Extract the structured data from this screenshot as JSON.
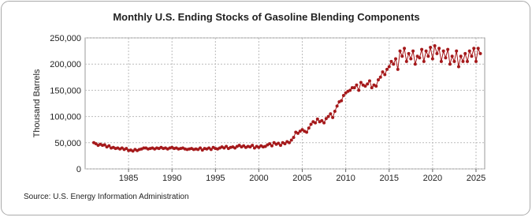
{
  "chart_data": {
    "type": "line",
    "title": "Monthly U.S. Ending Stocks of Gasoline Blending Components",
    "y_label": "Thousand Barrels",
    "source": "Source: U.S. Energy Information Administration",
    "x": [
      1981,
      1981.25,
      1981.5,
      1981.75,
      1982,
      1982.25,
      1982.5,
      1982.75,
      1983,
      1983.25,
      1983.5,
      1983.75,
      1984,
      1984.25,
      1984.5,
      1984.75,
      1985,
      1985.25,
      1985.5,
      1985.75,
      1986,
      1986.25,
      1986.5,
      1986.75,
      1987,
      1987.25,
      1987.5,
      1987.75,
      1988,
      1988.25,
      1988.5,
      1988.75,
      1989,
      1989.25,
      1989.5,
      1989.75,
      1990,
      1990.25,
      1990.5,
      1990.75,
      1991,
      1991.25,
      1991.5,
      1991.75,
      1992,
      1992.25,
      1992.5,
      1992.75,
      1993,
      1993.25,
      1993.5,
      1993.75,
      1994,
      1994.25,
      1994.5,
      1994.75,
      1995,
      1995.25,
      1995.5,
      1995.75,
      1996,
      1996.25,
      1996.5,
      1996.75,
      1997,
      1997.25,
      1997.5,
      1997.75,
      1998,
      1998.25,
      1998.5,
      1998.75,
      1999,
      1999.25,
      1999.5,
      1999.75,
      2000,
      2000.25,
      2000.5,
      2000.75,
      2001,
      2001.25,
      2001.5,
      2001.75,
      2002,
      2002.25,
      2002.5,
      2002.75,
      2003,
      2003.25,
      2003.5,
      2003.75,
      2004,
      2004.25,
      2004.5,
      2004.75,
      2005,
      2005.25,
      2005.5,
      2005.75,
      2006,
      2006.25,
      2006.5,
      2006.75,
      2007,
      2007.25,
      2007.5,
      2007.75,
      2008,
      2008.25,
      2008.5,
      2008.75,
      2009,
      2009.25,
      2009.5,
      2009.75,
      2010,
      2010.25,
      2010.5,
      2010.75,
      2011,
      2011.25,
      2011.5,
      2011.75,
      2012,
      2012.25,
      2012.5,
      2012.75,
      2013,
      2013.25,
      2013.5,
      2013.75,
      2014,
      2014.25,
      2014.5,
      2014.75,
      2015,
      2015.25,
      2015.5,
      2015.75,
      2016,
      2016.25,
      2016.5,
      2016.75,
      2017,
      2017.25,
      2017.5,
      2017.75,
      2018,
      2018.25,
      2018.5,
      2018.75,
      2019,
      2019.25,
      2019.5,
      2019.75,
      2020,
      2020.25,
      2020.5,
      2020.75,
      2021,
      2021.25,
      2021.5,
      2021.75,
      2022,
      2022.25,
      2022.5,
      2022.75,
      2023,
      2023.25,
      2023.5,
      2023.75,
      2024,
      2024.25,
      2024.5,
      2024.75,
      2025,
      2025.25,
      2025.5
    ],
    "series": [
      {
        "name": "Gasoline Blending Components",
        "color": "#a5191b",
        "values": [
          50000,
          48000,
          45000,
          47000,
          45000,
          46000,
          42000,
          44000,
          40000,
          41000,
          39000,
          40000,
          38000,
          40000,
          37000,
          39000,
          35000,
          36000,
          34000,
          37000,
          35000,
          37000,
          38000,
          40000,
          40000,
          38000,
          39000,
          40000,
          38000,
          40000,
          39000,
          41000,
          39000,
          40000,
          38000,
          40000,
          41000,
          39000,
          40000,
          38000,
          39000,
          40000,
          38000,
          37000,
          38000,
          39000,
          37000,
          38000,
          37000,
          40000,
          36000,
          39000,
          38000,
          40000,
          37000,
          41000,
          39000,
          38000,
          40000,
          42000,
          40000,
          43000,
          39000,
          41000,
          42000,
          40000,
          43000,
          45000,
          42000,
          44000,
          41000,
          43000,
          42000,
          45000,
          40000,
          43000,
          41000,
          44000,
          42000,
          43000,
          46000,
          48000,
          44000,
          50000,
          47000,
          49000,
          45000,
          50000,
          48000,
          52000,
          50000,
          55000,
          60000,
          70000,
          68000,
          72000,
          75000,
          72000,
          70000,
          78000,
          85000,
          90000,
          88000,
          95000,
          90000,
          92000,
          88000,
          96000,
          100000,
          105000,
          98000,
          110000,
          120000,
          128000,
          130000,
          140000,
          145000,
          148000,
          150000,
          155000,
          155000,
          160000,
          150000,
          165000,
          160000,
          158000,
          162000,
          168000,
          155000,
          160000,
          158000,
          170000,
          175000,
          185000,
          180000,
          190000,
          195000,
          205000,
          200000,
          210000,
          190000,
          225000,
          215000,
          230000,
          205000,
          220000,
          210000,
          225000,
          200000,
          215000,
          212000,
          228000,
          205000,
          225000,
          215000,
          232000,
          210000,
          235000,
          220000,
          230000,
          205000,
          225000,
          212000,
          228000,
          200000,
          215000,
          205000,
          225000,
          195000,
          215000,
          205000,
          220000,
          205000,
          225000,
          215000,
          230000,
          205000,
          230000,
          220000
        ]
      }
    ],
    "xlim": [
      1980,
      2026
    ],
    "xticks": [
      1985,
      1990,
      1995,
      2000,
      2005,
      2010,
      2015,
      2020,
      2025
    ],
    "ylim": [
      0,
      250000
    ],
    "yticks": [
      0,
      {
        "value": 50000,
        "label": "50,000"
      },
      {
        "value": 100000,
        "label": "100,000"
      },
      {
        "value": 150000,
        "label": "150,000"
      },
      {
        "value": 200000,
        "label": "200,000"
      },
      {
        "value": 250000,
        "label": "250,000"
      }
    ],
    "grid": true
  }
}
